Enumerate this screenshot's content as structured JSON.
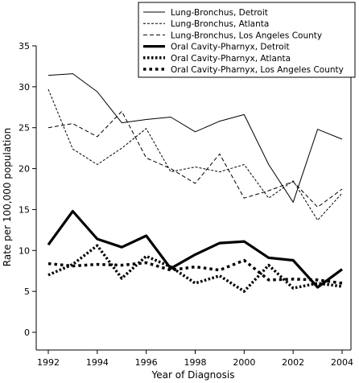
{
  "chart_data": {
    "type": "line",
    "title": "",
    "xlabel": "Year of Diagnosis",
    "ylabel": "Rate per 100,000 population",
    "xlim": [
      1992,
      2004
    ],
    "ylim": [
      0,
      35
    ],
    "x_ticks": [
      1992,
      1994,
      1996,
      1998,
      2000,
      2002,
      2004
    ],
    "y_ticks": [
      0,
      5,
      10,
      15,
      20,
      25,
      30,
      35
    ],
    "legend_position": "top-right",
    "grid": false,
    "x": [
      1992,
      1993,
      1994,
      1995,
      1996,
      1997,
      1998,
      1999,
      2000,
      2001,
      2002,
      2003,
      2004
    ],
    "series": [
      {
        "name": "Lung-Bronchus, Detroit",
        "style": "solid-thin",
        "color": "#000000",
        "values": [
          31.4,
          31.6,
          29.4,
          25.6,
          26.0,
          26.3,
          24.5,
          25.8,
          26.6,
          20.5,
          15.9,
          24.8,
          23.6
        ]
      },
      {
        "name": "Lung-Bronchus, Atlanta",
        "style": "dashed-fine",
        "color": "#000000",
        "values": [
          29.7,
          22.4,
          20.5,
          22.5,
          24.9,
          19.6,
          20.2,
          19.6,
          20.5,
          16.4,
          18.5,
          13.7,
          17.0
        ]
      },
      {
        "name": "Lung-Bronchus, Los Angeles County",
        "style": "dashed",
        "color": "#000000",
        "values": [
          25.0,
          25.5,
          23.9,
          27.0,
          21.3,
          20.0,
          18.2,
          21.8,
          16.4,
          17.3,
          18.4,
          15.3,
          17.5
        ]
      },
      {
        "name": "Oral Cavity-Pharnyx, Detroit",
        "style": "solid-thick",
        "color": "#000000",
        "values": [
          10.7,
          14.8,
          11.4,
          10.4,
          11.8,
          7.8,
          9.5,
          10.9,
          11.1,
          9.1,
          8.8,
          5.5,
          7.7
        ]
      },
      {
        "name": "Oral Cavity-Pharnyx, Atlanta",
        "style": "dotted-thick",
        "color": "#000000",
        "values": [
          7.0,
          8.3,
          10.6,
          6.6,
          9.3,
          8.0,
          6.0,
          6.9,
          5.0,
          8.2,
          5.4,
          6.0,
          5.6
        ]
      },
      {
        "name": "Oral Cavity-Pharnyx, Los Angeles County",
        "style": "dashed-thick",
        "color": "#000000",
        "values": [
          8.4,
          8.1,
          8.3,
          8.2,
          8.5,
          7.6,
          8.0,
          7.6,
          8.8,
          6.4,
          6.5,
          6.4,
          6.0
        ]
      }
    ]
  }
}
